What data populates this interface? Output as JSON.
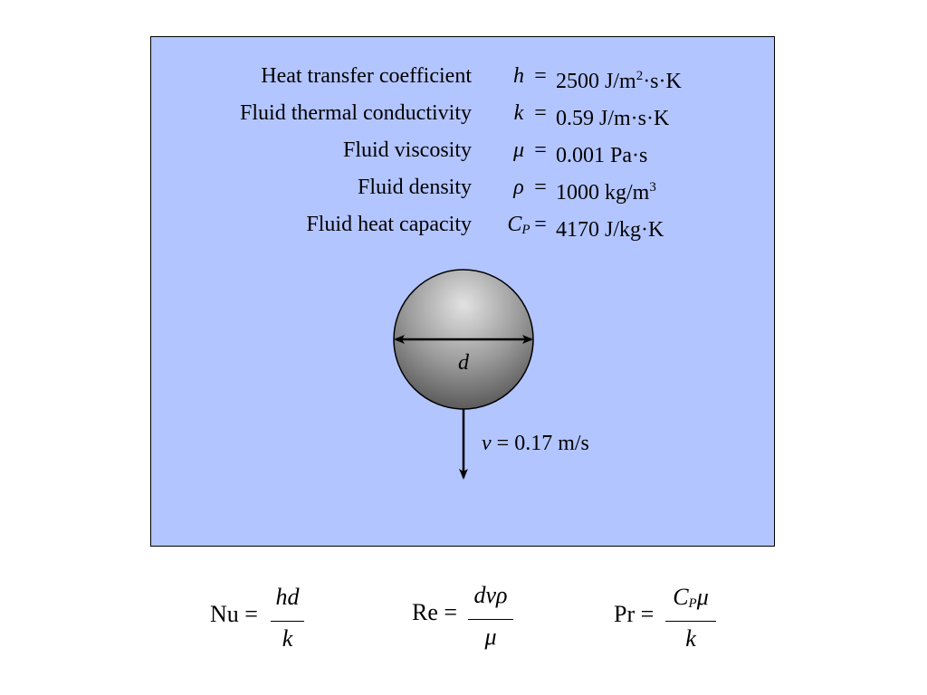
{
  "properties": [
    {
      "label": "Heat transfer coefficient",
      "symbol": "h",
      "symbol_sub": "",
      "equals": "=",
      "value": "2500 J/m",
      "sup": "2",
      "value_rest": "·s·K"
    },
    {
      "label": "Fluid thermal conductivity",
      "symbol": "k",
      "symbol_sub": "",
      "equals": "=",
      "value": "0.59 J/m·s·K",
      "sup": "",
      "value_rest": ""
    },
    {
      "label": "Fluid viscosity",
      "symbol": "μ",
      "symbol_sub": "",
      "equals": "=",
      "value": "0.001 Pa·s",
      "sup": "",
      "value_rest": ""
    },
    {
      "label": "Fluid density",
      "symbol": "ρ",
      "symbol_sub": "",
      "equals": "=",
      "value": "1000 kg/m",
      "sup": "3",
      "value_rest": ""
    },
    {
      "label": "Fluid heat capacity",
      "symbol": "C",
      "symbol_sub": "P",
      "equals": "=",
      "value": "4170 J/kg·K",
      "sup": "",
      "value_rest": ""
    }
  ],
  "sphere": {
    "diameter_label": "d",
    "velocity_symbol": "v",
    "velocity_value": "= 0.17 m/s"
  },
  "formulas": {
    "nusselt": {
      "lhs": "Nu =",
      "numerator": "hd",
      "numerator_sub": "",
      "numerator_rest": "",
      "denominator": "k"
    },
    "reynolds": {
      "lhs": "Re =",
      "numerator": "dvρ",
      "numerator_sub": "",
      "numerator_rest": "",
      "denominator": "μ"
    },
    "prandtl": {
      "lhs": "Pr =",
      "numerator": "C",
      "numerator_sub": "P",
      "numerator_rest": "μ",
      "denominator": "k"
    }
  },
  "colors": {
    "panel_background": "#b3c5ff",
    "sphere_highlight": "#e0e0e0",
    "sphere_shadow": "#5a5a5a"
  }
}
